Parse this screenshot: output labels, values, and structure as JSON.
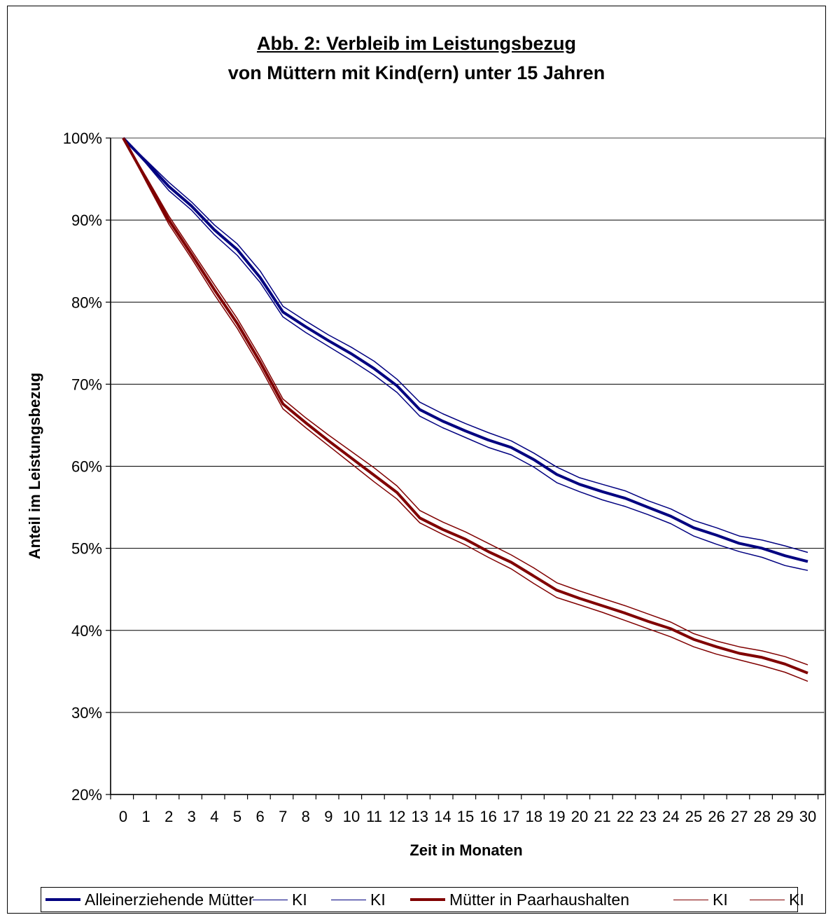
{
  "chart_data": {
    "type": "line",
    "title": "Abb. 2: Verbleib im Leistungsbezug",
    "subtitle": "von Müttern mit Kind(ern) unter 15 Jahren",
    "xlabel": "Zeit in Monaten",
    "ylabel": "Anteil im Leistungsbezug",
    "x": [
      0,
      1,
      2,
      3,
      4,
      5,
      6,
      7,
      8,
      9,
      10,
      11,
      12,
      13,
      14,
      15,
      16,
      17,
      18,
      19,
      20,
      21,
      22,
      23,
      24,
      25,
      26,
      27,
      28,
      29,
      30
    ],
    "x_ticks": [
      "0",
      "1",
      "2",
      "3",
      "4",
      "5",
      "6",
      "7",
      "8",
      "9",
      "10",
      "11",
      "12",
      "13",
      "14",
      "15",
      "16",
      "17",
      "18",
      "19",
      "20",
      "21",
      "22",
      "23",
      "24",
      "25",
      "26",
      "27",
      "28",
      "29",
      "30"
    ],
    "ylim": [
      20,
      100
    ],
    "y_ticks": [
      "20%",
      "30%",
      "40%",
      "50%",
      "60%",
      "70%",
      "80%",
      "90%",
      "100%"
    ],
    "grid": "horizontal",
    "legend_position": "bottom",
    "series": [
      {
        "name": "Alleinerziehende Mütter",
        "color": "#000080",
        "width": 4,
        "values": [
          100,
          97.1,
          94.1,
          91.7,
          88.8,
          86.4,
          83.0,
          78.8,
          77.0,
          75.3,
          73.7,
          71.9,
          69.8,
          66.9,
          65.5,
          64.3,
          63.2,
          62.3,
          60.8,
          59.0,
          57.8,
          56.9,
          56.1,
          55.0,
          53.9,
          52.5,
          51.6,
          50.6,
          50.0,
          49.1,
          48.4
        ]
      },
      {
        "name": "KI",
        "color": "#000080",
        "width": 1.5,
        "values": [
          100,
          97.3,
          94.6,
          92.2,
          89.4,
          87.1,
          83.8,
          79.5,
          77.7,
          76.0,
          74.5,
          72.8,
          70.6,
          67.8,
          66.4,
          65.2,
          64.1,
          63.1,
          61.6,
          59.9,
          58.6,
          57.8,
          57.0,
          55.8,
          54.8,
          53.4,
          52.5,
          51.5,
          51.0,
          50.3,
          49.5
        ]
      },
      {
        "name": "KI",
        "color": "#000080",
        "width": 1.5,
        "values": [
          100,
          96.9,
          93.6,
          91.2,
          88.2,
          85.7,
          82.4,
          78.2,
          76.3,
          74.6,
          72.9,
          71.1,
          69.0,
          66.1,
          64.7,
          63.5,
          62.3,
          61.4,
          59.9,
          58.0,
          56.9,
          55.9,
          55.1,
          54.1,
          53.0,
          51.5,
          50.5,
          49.6,
          48.9,
          47.9,
          47.3
        ]
      },
      {
        "name": "Mütter in Paarhaushalten",
        "color": "#800000",
        "width": 4,
        "values": [
          100,
          95.0,
          90.0,
          85.8,
          81.5,
          77.4,
          72.7,
          67.6,
          65.3,
          63.1,
          61.0,
          58.9,
          56.8,
          53.7,
          52.3,
          51.1,
          49.6,
          48.3,
          46.6,
          44.9,
          43.9,
          43.0,
          42.1,
          41.1,
          40.2,
          38.9,
          38.0,
          37.2,
          36.7,
          35.9,
          34.8
        ]
      },
      {
        "name": "KI",
        "color": "#800000",
        "width": 1.5,
        "values": [
          100,
          95.3,
          90.5,
          86.3,
          82.1,
          78.0,
          73.3,
          68.2,
          65.9,
          63.8,
          61.8,
          59.8,
          57.6,
          54.6,
          53.2,
          52.0,
          50.6,
          49.2,
          47.6,
          45.8,
          44.8,
          43.9,
          43.0,
          42.0,
          41.0,
          39.6,
          38.7,
          38.0,
          37.5,
          36.8,
          35.8
        ]
      },
      {
        "name": "KI",
        "color": "#800000",
        "width": 1.5,
        "values": [
          100,
          94.7,
          89.5,
          85.3,
          80.9,
          76.8,
          72.1,
          67.0,
          64.7,
          62.5,
          60.3,
          58.1,
          56.0,
          53.1,
          51.7,
          50.4,
          48.9,
          47.5,
          45.7,
          44.0,
          43.1,
          42.2,
          41.2,
          40.2,
          39.2,
          38.0,
          37.1,
          36.4,
          35.7,
          34.9,
          33.8
        ]
      }
    ]
  }
}
